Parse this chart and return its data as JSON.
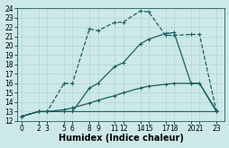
{
  "bg_color": "#cce8e8",
  "grid_color": "#b8d8d8",
  "line_color": "#1a5f5f",
  "xlabel": "Humidex (Indice chaleur)",
  "xlabel_fontsize": 7,
  "ylim": [
    12,
    24
  ],
  "xlim": [
    -0.5,
    24
  ],
  "yticks": [
    12,
    13,
    14,
    15,
    16,
    17,
    18,
    19,
    20,
    21,
    22,
    23,
    24
  ],
  "xtick_positions": [
    0,
    2,
    3,
    5,
    6,
    8,
    9,
    11,
    12,
    14,
    15,
    17,
    18,
    20,
    21,
    23
  ],
  "xtick_labels": [
    "0",
    "2",
    "3",
    "5",
    "6",
    "8",
    "9",
    "11",
    "12",
    "14",
    "15",
    "17",
    "18",
    "20",
    "21",
    "23"
  ],
  "lines": [
    {
      "x": [
        0,
        2,
        3,
        5,
        6,
        8,
        9,
        11,
        12,
        14,
        15,
        17,
        18,
        20,
        21,
        23
      ],
      "y": [
        12.5,
        13,
        13,
        16,
        16,
        21.8,
        21.6,
        22.5,
        22.5,
        23.7,
        23.6,
        21.1,
        21.1,
        21.2,
        21.2,
        13
      ],
      "marker": "+",
      "linestyle": "--",
      "linewidth": 0.9
    },
    {
      "x": [
        0,
        2,
        3,
        5,
        6,
        8,
        9,
        11,
        12,
        14,
        15,
        17,
        18,
        20,
        21,
        23
      ],
      "y": [
        12.5,
        13,
        13,
        13,
        13,
        15.5,
        16,
        17.8,
        18.2,
        20.2,
        20.7,
        21.3,
        21.4,
        16,
        16,
        13
      ],
      "marker": "+",
      "linestyle": "-",
      "linewidth": 0.9
    },
    {
      "x": [
        0,
        2,
        3,
        5,
        6,
        8,
        9,
        11,
        12,
        14,
        15,
        17,
        18,
        20,
        21,
        23
      ],
      "y": [
        12.5,
        13,
        13,
        13.2,
        13.4,
        13.9,
        14.2,
        14.7,
        15.0,
        15.5,
        15.7,
        15.9,
        16.0,
        16.0,
        16.0,
        13.1
      ],
      "marker": "+",
      "linestyle": "-",
      "linewidth": 0.9
    },
    {
      "x": [
        0,
        2,
        3,
        5,
        6,
        8,
        9,
        11,
        12,
        14,
        15,
        17,
        18,
        20,
        21,
        23
      ],
      "y": [
        12.5,
        13,
        13,
        13,
        13,
        13,
        13,
        13,
        13,
        13,
        13,
        13,
        13,
        13,
        13,
        13
      ],
      "marker": null,
      "linestyle": "-",
      "linewidth": 0.8
    }
  ]
}
